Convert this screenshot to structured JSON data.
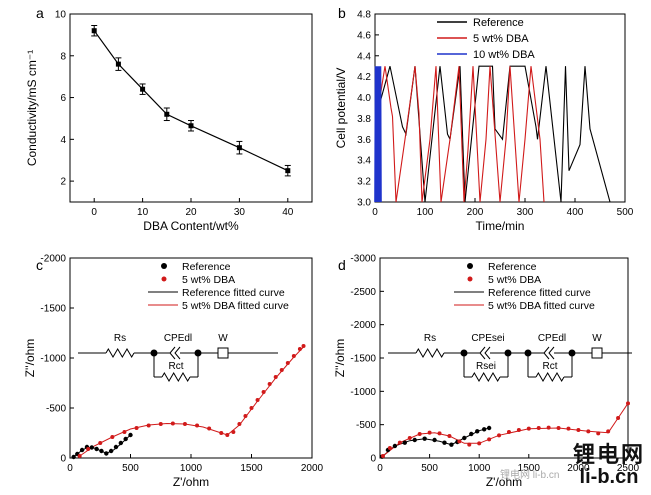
{
  "watermark": {
    "logo_cn": "锂电网",
    "logo_en": "li-b.cn",
    "sub": "锂电网 li-b.cn"
  },
  "colors": {
    "reference": "#000000",
    "dba5": "#d11a1a",
    "dba10": "#1f33cc",
    "axis": "#000000"
  },
  "chart_data": [
    {
      "panel": "a",
      "type": "line",
      "xlabel": "DBA Content/wt%",
      "ylabel": "Conductivity/mS cm⁻¹",
      "xlim": [
        -5,
        45
      ],
      "ylim": [
        1,
        10
      ],
      "xticks": [
        0,
        10,
        20,
        30,
        40
      ],
      "yticks": [
        2,
        4,
        6,
        8,
        10
      ],
      "series": [
        {
          "name": "Conductivity",
          "x": [
            0,
            5,
            10,
            15,
            20,
            30,
            40
          ],
          "y": [
            9.2,
            7.6,
            6.4,
            5.2,
            4.65,
            3.6,
            2.5
          ],
          "err": [
            0.25,
            0.3,
            0.25,
            0.3,
            0.25,
            0.3,
            0.25
          ]
        }
      ]
    },
    {
      "panel": "b",
      "type": "line",
      "xlabel": "Time/min",
      "ylabel": "Cell potential/V",
      "xlim": [
        0,
        500
      ],
      "ylim": [
        3.0,
        4.8
      ],
      "xticks": [
        0,
        100,
        200,
        300,
        400,
        500
      ],
      "yticks": [
        3.0,
        3.2,
        3.4,
        3.6,
        3.8,
        4.0,
        4.2,
        4.4,
        4.6,
        4.8
      ],
      "legend": [
        "Reference",
        "5 wt% DBA",
        "10 wt% DBA"
      ],
      "series": [
        {
          "name": "Reference",
          "x": [
            0,
            30,
            55,
            62,
            80,
            100,
            130,
            145,
            150,
            170,
            180,
            208,
            235,
            240,
            255,
            270,
            300,
            322,
            325,
            342,
            372,
            381,
            388,
            410,
            420,
            430,
            470
          ],
          "y": [
            3.78,
            4.3,
            3.72,
            3.65,
            4.3,
            3.0,
            4.3,
            3.65,
            3.6,
            4.3,
            3.0,
            4.3,
            4.3,
            3.7,
            3.6,
            4.3,
            4.3,
            3.72,
            3.6,
            4.3,
            3.0,
            4.3,
            3.3,
            3.55,
            4.3,
            3.7,
            3.0
          ]
        },
        {
          "name": "5 wt% DBA",
          "x": [
            0,
            20,
            32,
            35,
            42,
            60,
            80,
            88,
            94,
            110,
            122,
            132,
            150,
            168,
            178,
            186,
            196,
            210,
            222,
            230,
            250,
            262,
            270,
            288,
            300,
            312,
            330,
            338
          ],
          "y": [
            3.7,
            4.3,
            3.9,
            3.82,
            3.0,
            3.6,
            4.3,
            3.85,
            3.0,
            3.6,
            4.3,
            3.0,
            3.6,
            4.3,
            3.0,
            3.5,
            4.3,
            3.0,
            3.6,
            4.3,
            3.0,
            3.6,
            4.3,
            3.0,
            3.6,
            4.3,
            3.6,
            3.0
          ]
        },
        {
          "name": "10 wt% DBA",
          "x": [
            0,
            1,
            2,
            3,
            4,
            5,
            6,
            7,
            8,
            9,
            10,
            11,
            12
          ],
          "y": [
            3.0,
            4.3,
            3.0,
            4.3,
            3.0,
            4.3,
            3.0,
            4.3,
            3.0,
            4.3,
            3.0,
            4.3,
            3.0
          ]
        }
      ]
    },
    {
      "panel": "c",
      "type": "scatter",
      "xlabel": "Z'/ohm",
      "ylabel": "Z''/ohm",
      "xlim": [
        0,
        2000
      ],
      "ylim": [
        0,
        -2000
      ],
      "xticks": [
        0,
        500,
        1000,
        1500,
        2000
      ],
      "yticks": [
        0,
        -500,
        -1000,
        -1500,
        -2000
      ],
      "legend": [
        "Reference",
        "5 wt% DBA",
        "Reference fitted curve",
        "5 wt% DBA fitted curve"
      ],
      "circuit": [
        "Rs",
        "CPEdl",
        "W",
        "Rct"
      ],
      "series": [
        {
          "name": "Reference",
          "x": [
            30,
            60,
            100,
            140,
            180,
            220,
            260,
            300,
            340,
            380,
            420,
            460,
            500
          ],
          "y": [
            -10,
            -40,
            -80,
            -110,
            -105,
            -90,
            -70,
            -45,
            -70,
            -110,
            -150,
            -190,
            -230
          ]
        },
        {
          "name": "5 wt% DBA",
          "x": [
            80,
            150,
            250,
            350,
            450,
            550,
            650,
            750,
            850,
            950,
            1050,
            1150,
            1250,
            1300,
            1350,
            1400,
            1450,
            1500,
            1550,
            1600,
            1650,
            1700,
            1750,
            1800,
            1850,
            1900,
            1930
          ],
          "y": [
            -20,
            -90,
            -150,
            -210,
            -260,
            -300,
            -325,
            -340,
            -345,
            -340,
            -325,
            -295,
            -250,
            -230,
            -260,
            -340,
            -420,
            -500,
            -580,
            -660,
            -740,
            -810,
            -880,
            -950,
            -1020,
            -1090,
            -1120
          ]
        },
        {
          "name": "Reference fitted curve",
          "x": [
            30,
            80,
            140,
            200,
            260,
            300,
            360,
            420,
            500
          ],
          "y": [
            -10,
            -60,
            -105,
            -100,
            -70,
            -45,
            -80,
            -140,
            -230
          ]
        },
        {
          "name": "5 wt% DBA fitted curve",
          "x": [
            80,
            200,
            350,
            500,
            650,
            800,
            950,
            1100,
            1250,
            1300,
            1400,
            1550,
            1700,
            1850,
            1930
          ],
          "y": [
            -20,
            -120,
            -210,
            -290,
            -330,
            -345,
            -340,
            -310,
            -250,
            -230,
            -330,
            -570,
            -800,
            -1010,
            -1110
          ]
        }
      ]
    },
    {
      "panel": "d",
      "type": "scatter",
      "xlabel": "Z'/ohm",
      "ylabel": "Z''/ohm",
      "xlim": [
        0,
        2500
      ],
      "ylim": [
        0,
        -3000
      ],
      "xticks": [
        0,
        500,
        1000,
        1500,
        2000,
        2500
      ],
      "yticks": [
        0,
        -500,
        -1000,
        -1500,
        -2000,
        -2500,
        -3000
      ],
      "legend": [
        "Reference",
        "5 wt% DBA",
        "Reference fitted curve",
        "5 wt% DBA fitted curve"
      ],
      "circuit": [
        "Rs",
        "CPEsei",
        "CPEdl",
        "W",
        "Rsei",
        "Rct"
      ],
      "series": [
        {
          "name": "Reference",
          "x": [
            20,
            80,
            150,
            250,
            350,
            450,
            550,
            650,
            720,
            780,
            850,
            920,
            980,
            1050,
            1100
          ],
          "y": [
            -20,
            -120,
            -180,
            -230,
            -270,
            -290,
            -270,
            -230,
            -200,
            -240,
            -300,
            -360,
            -400,
            -430,
            -450
          ]
        },
        {
          "name": "5 wt% DBA",
          "x": [
            30,
            100,
            200,
            300,
            400,
            500,
            600,
            700,
            800,
            900,
            1000,
            1100,
            1200,
            1300,
            1400,
            1500,
            1600,
            1700,
            1800,
            1900,
            2000,
            2100,
            2200,
            2300,
            2400,
            2500
          ],
          "y": [
            -30,
            -150,
            -230,
            -300,
            -360,
            -380,
            -370,
            -330,
            -250,
            -200,
            -220,
            -280,
            -340,
            -390,
            -420,
            -440,
            -450,
            -455,
            -450,
            -440,
            -420,
            -400,
            -370,
            -400,
            -600,
            -820
          ]
        },
        {
          "name": "Reference fitted curve",
          "x": [
            20,
            150,
            300,
            450,
            600,
            720,
            850,
            1000,
            1100
          ],
          "y": [
            -20,
            -180,
            -260,
            -290,
            -250,
            -200,
            -300,
            -410,
            -450
          ]
        },
        {
          "name": "5 wt% DBA fitted curve",
          "x": [
            30,
            200,
            400,
            550,
            700,
            850,
            1000,
            1200,
            1500,
            1800,
            2100,
            2300,
            2400,
            2500
          ],
          "y": [
            -30,
            -230,
            -360,
            -380,
            -330,
            -220,
            -220,
            -340,
            -440,
            -450,
            -400,
            -380,
            -600,
            -820
          ]
        }
      ]
    }
  ]
}
